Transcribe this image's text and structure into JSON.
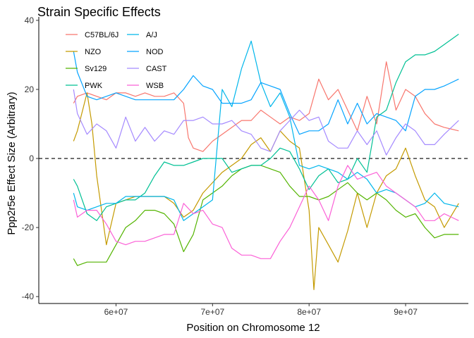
{
  "chart_data": {
    "type": "line",
    "title": "Strain Specific Effects",
    "xlabel": "Position on Chromosome 12",
    "ylabel": "Ppp2r5e Effect Size (Arbitrary)",
    "xlim": [
      52000000,
      96500000
    ],
    "ylim": [
      -42,
      41
    ],
    "x_ticks": [
      60000000,
      70000000,
      80000000,
      90000000
    ],
    "x_tick_labels": [
      "6e+07",
      "7e+07",
      "8e+07",
      "9e+07"
    ],
    "y_ticks": [
      -40,
      -20,
      0,
      20,
      40
    ],
    "y_tick_labels": [
      "-40",
      "-20",
      "0",
      "20",
      "40"
    ],
    "reference_line": {
      "y": 0,
      "style": "dashed"
    },
    "grid": false,
    "legend": {
      "placement": "top-left",
      "columns": 2
    },
    "series": [
      {
        "name": "C57BL/6J",
        "color": "#F8766D",
        "x": [
          55600000,
          56000000,
          57000000,
          58000000,
          59000000,
          60000000,
          61000000,
          62000000,
          63000000,
          64000000,
          65000000,
          66000000,
          67000000,
          67500000,
          68000000,
          69000000,
          70000000,
          71000000,
          72000000,
          73000000,
          74000000,
          75000000,
          76000000,
          77000000,
          78000000,
          79000000,
          80000000,
          81000000,
          82000000,
          83000000,
          84000000,
          85000000,
          86000000,
          87000000,
          88000000,
          89000000,
          90000000,
          91000000,
          92000000,
          93000000,
          94000000,
          95500000
        ],
        "values": [
          16,
          18,
          19,
          18,
          17,
          19,
          19,
          18,
          19,
          18,
          18,
          19,
          16,
          6,
          3,
          2,
          5,
          7,
          9,
          11,
          11,
          14,
          12,
          10,
          12,
          11,
          13,
          23,
          17,
          20,
          14,
          8,
          18,
          10,
          28,
          14,
          20,
          18,
          13,
          10,
          9,
          8
        ]
      },
      {
        "name": "NZO",
        "color": "#C49A00",
        "x": [
          55600000,
          56000000,
          57000000,
          57500000,
          58000000,
          59000000,
          60000000,
          61000000,
          62000000,
          63000000,
          64000000,
          65000000,
          66000000,
          67000000,
          68000000,
          69000000,
          70000000,
          71000000,
          72000000,
          73000000,
          74000000,
          75000000,
          76000000,
          77000000,
          78000000,
          79000000,
          80000000,
          80500000,
          81000000,
          82000000,
          83000000,
          84000000,
          85000000,
          86000000,
          87000000,
          88000000,
          89000000,
          90000000,
          91000000,
          92000000,
          93000000,
          94000000,
          95500000
        ],
        "values": [
          5,
          8,
          19,
          10,
          -5,
          -25,
          -13,
          -12,
          -11,
          -11,
          -11,
          -11,
          -13,
          -17,
          -15,
          -10,
          -7,
          -4,
          -2,
          0,
          4,
          6,
          2,
          8,
          5,
          3,
          -15,
          -38,
          -20,
          -25,
          -30,
          -21,
          -10,
          -20,
          -10,
          -5,
          -3,
          3,
          -5,
          -12,
          -14,
          -20,
          -13
        ]
      },
      {
        "name": "Sv129",
        "color": "#53B400",
        "x": [
          55600000,
          56000000,
          57000000,
          58000000,
          59000000,
          60000000,
          61000000,
          62000000,
          63000000,
          64000000,
          65000000,
          66000000,
          67000000,
          68000000,
          69000000,
          70000000,
          71000000,
          72000000,
          73000000,
          74000000,
          75000000,
          76000000,
          77000000,
          78000000,
          79000000,
          80000000,
          81000000,
          82000000,
          83000000,
          84000000,
          85000000,
          86000000,
          87000000,
          88000000,
          89000000,
          90000000,
          91000000,
          92000000,
          93000000,
          94000000,
          95500000
        ],
        "values": [
          -29,
          -31,
          -30,
          -30,
          -30,
          -25,
          -20,
          -18,
          -15,
          -15,
          -16,
          -19,
          -27,
          -22,
          -12,
          -10,
          -8,
          -5,
          -3,
          -2,
          -2,
          -3,
          -4,
          -8,
          -11,
          -11,
          -12,
          -11,
          -9,
          -7,
          -10,
          -12,
          -10,
          -12,
          -15,
          -17,
          -16,
          -20,
          -23,
          -22,
          -22
        ]
      },
      {
        "name": "PWK",
        "color": "#00C094",
        "x": [
          55600000,
          56000000,
          57000000,
          58000000,
          59000000,
          60000000,
          61000000,
          62000000,
          63000000,
          64000000,
          65000000,
          66000000,
          67000000,
          68000000,
          69000000,
          70000000,
          71000000,
          72000000,
          73000000,
          74000000,
          75000000,
          76000000,
          77000000,
          78000000,
          79000000,
          80000000,
          81000000,
          82000000,
          83000000,
          84000000,
          85000000,
          86000000,
          87000000,
          88000000,
          89000000,
          90000000,
          91000000,
          92000000,
          93000000,
          94000000,
          95500000
        ],
        "values": [
          -6,
          -8,
          -16,
          -18,
          -14,
          -13,
          -12,
          -12,
          -10,
          -5,
          -1,
          -2,
          -2,
          -1,
          0,
          0,
          0,
          -4,
          -3,
          -2,
          -2,
          0,
          3,
          2,
          -3,
          -9,
          -5,
          -3,
          -7,
          -6,
          0,
          -4,
          12,
          14,
          22,
          28,
          30,
          30,
          31,
          33,
          36
        ]
      },
      {
        "name": "A/J",
        "color": "#00B6EB",
        "x": [
          55600000,
          56000000,
          57000000,
          58000000,
          59000000,
          60000000,
          61000000,
          62000000,
          63000000,
          64000000,
          65000000,
          66000000,
          67000000,
          68000000,
          69000000,
          70000000,
          71000000,
          72000000,
          73000000,
          74000000,
          75000000,
          76000000,
          77000000,
          78000000,
          79000000,
          80000000,
          81000000,
          82000000,
          83000000,
          84000000,
          85000000,
          86000000,
          87000000,
          88000000,
          89000000,
          90000000,
          91000000,
          92000000,
          93000000,
          94000000,
          95500000
        ],
        "values": [
          -10,
          -14,
          -15,
          -14,
          -13,
          -13,
          -11,
          -11,
          -11,
          -11,
          -11,
          -12,
          -18,
          -16,
          -14,
          -12,
          20,
          15,
          26,
          34,
          22,
          15,
          19,
          12,
          -2,
          -3,
          -2,
          -3,
          -4,
          -6,
          -4,
          -6,
          -10,
          -9,
          -10,
          -12,
          -14,
          -13,
          -10,
          -13,
          -14
        ]
      },
      {
        "name": "NOD",
        "color": "#06A4FF",
        "x": [
          55600000,
          56000000,
          57000000,
          58000000,
          59000000,
          60000000,
          61000000,
          62000000,
          63000000,
          64000000,
          65000000,
          66000000,
          67000000,
          68000000,
          69000000,
          70000000,
          71000000,
          72000000,
          73000000,
          74000000,
          75000000,
          76000000,
          77000000,
          78000000,
          79000000,
          80000000,
          81000000,
          82000000,
          83000000,
          84000000,
          85000000,
          86000000,
          87000000,
          88000000,
          89000000,
          90000000,
          91000000,
          92000000,
          93000000,
          94000000,
          95500000
        ],
        "values": [
          31,
          25,
          18,
          17,
          18,
          19,
          18,
          17,
          17,
          17,
          17,
          17,
          20,
          24,
          21,
          20,
          16,
          16,
          16,
          17,
          22,
          21,
          20,
          13,
          7,
          8,
          8,
          10,
          17,
          10,
          16,
          10,
          13,
          12,
          11,
          8,
          18,
          20,
          20,
          21,
          23
        ]
      },
      {
        "name": "CAST",
        "color": "#A58AFF",
        "x": [
          55600000,
          56000000,
          57000000,
          58000000,
          59000000,
          60000000,
          61000000,
          62000000,
          63000000,
          64000000,
          65000000,
          66000000,
          67000000,
          68000000,
          69000000,
          70000000,
          71000000,
          72000000,
          73000000,
          74000000,
          75000000,
          76000000,
          77000000,
          78000000,
          79000000,
          80000000,
          81000000,
          82000000,
          83000000,
          84000000,
          85000000,
          86000000,
          87000000,
          88000000,
          89000000,
          90000000,
          91000000,
          92000000,
          93000000,
          94000000,
          95500000
        ],
        "values": [
          20,
          13,
          7,
          10,
          8,
          3,
          12,
          5,
          9,
          5,
          8,
          7,
          11,
          11,
          12,
          10,
          10,
          11,
          8,
          7,
          3,
          2,
          8,
          11,
          14,
          11,
          12,
          5,
          3,
          3,
          8,
          4,
          8,
          1,
          6,
          10,
          8,
          4,
          4,
          7,
          11
        ]
      },
      {
        "name": "WSB",
        "color": "#FB61D7",
        "x": [
          55600000,
          56000000,
          57000000,
          58000000,
          59000000,
          60000000,
          61000000,
          62000000,
          63000000,
          64000000,
          65000000,
          66000000,
          67000000,
          68000000,
          69000000,
          70000000,
          71000000,
          72000000,
          73000000,
          74000000,
          75000000,
          76000000,
          77000000,
          78000000,
          79000000,
          80000000,
          81000000,
          82000000,
          83000000,
          84000000,
          85000000,
          86000000,
          87000000,
          88000000,
          89000000,
          90000000,
          91000000,
          92000000,
          93000000,
          94000000,
          95500000
        ],
        "values": [
          -12,
          -17,
          -15,
          -15,
          -19,
          -24,
          -25,
          -24,
          -24,
          -23,
          -22,
          -22,
          -13,
          -16,
          -15,
          -19,
          -20,
          -26,
          -28,
          -28,
          -29,
          -29,
          -24,
          -20,
          -14,
          -8,
          -12,
          -18,
          -8,
          -2,
          -6,
          -5,
          -4,
          -8,
          -10,
          -12,
          -14,
          -18,
          -18,
          -16,
          -18
        ]
      }
    ]
  }
}
